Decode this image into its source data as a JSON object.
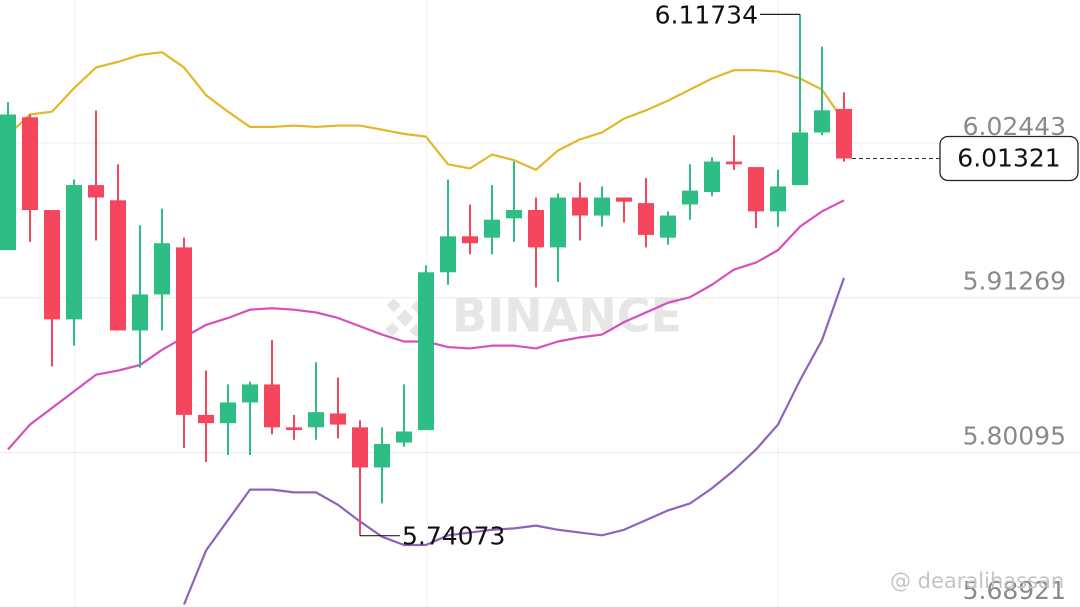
{
  "chart_data": {
    "type": "candlestick",
    "categories": [
      null,
      null,
      null,
      null,
      null,
      null,
      null,
      null,
      null,
      null,
      null,
      null,
      null,
      null,
      null,
      null,
      null,
      null,
      null,
      null,
      null,
      null,
      null,
      null,
      null,
      null,
      null,
      null,
      null,
      null,
      null,
      null,
      null,
      null,
      null,
      null,
      null,
      null,
      null
    ],
    "ohlc": [
      [
        5.947,
        6.054,
        5.947,
        6.045
      ],
      [
        6.043,
        6.045,
        5.953,
        5.976
      ],
      [
        5.976,
        5.976,
        5.863,
        5.897
      ],
      [
        5.897,
        5.998,
        5.878,
        5.994
      ],
      [
        5.994,
        6.048,
        5.954,
        5.985
      ],
      [
        5.983,
        6.009,
        5.889,
        5.889
      ],
      [
        5.889,
        5.965,
        5.862,
        5.915
      ],
      [
        5.915,
        5.977,
        5.889,
        5.952
      ],
      [
        5.949,
        5.956,
        5.804,
        5.828
      ],
      [
        5.828,
        5.86,
        5.794,
        5.822
      ],
      [
        5.822,
        5.85,
        5.799,
        5.837
      ],
      [
        5.837,
        5.852,
        5.799,
        5.85
      ],
      [
        5.85,
        5.882,
        5.814,
        5.819
      ],
      [
        5.819,
        5.828,
        5.81,
        5.817
      ],
      [
        5.819,
        5.866,
        5.81,
        5.83
      ],
      [
        5.829,
        5.855,
        5.811,
        5.821
      ],
      [
        5.819,
        5.824,
        5.74073,
        5.79
      ],
      [
        5.79,
        5.819,
        5.764,
        5.807
      ],
      [
        5.808,
        5.85,
        5.805,
        5.816
      ],
      [
        5.817,
        5.936,
        5.817,
        5.931
      ],
      [
        5.931,
        5.998,
        5.922,
        5.957
      ],
      [
        5.957,
        5.98,
        5.944,
        5.952
      ],
      [
        5.956,
        5.994,
        5.944,
        5.969
      ],
      [
        5.97,
        6.011,
        5.953,
        5.976
      ],
      [
        5.976,
        5.985,
        5.92,
        5.949
      ],
      [
        5.949,
        5.988,
        5.924,
        5.985
      ],
      [
        5.985,
        5.996,
        5.954,
        5.972
      ],
      [
        5.972,
        5.993,
        5.964,
        5.985
      ],
      [
        5.985,
        5.985,
        5.967,
        5.982
      ],
      [
        5.981,
        5.999,
        5.949,
        5.958
      ],
      [
        5.956,
        5.975,
        5.951,
        5.972
      ],
      [
        5.98,
        6.009,
        5.969,
        5.99
      ],
      [
        5.989,
        6.014,
        5.986,
        6.011
      ],
      [
        6.011,
        6.03,
        6.005,
        6.009
      ],
      [
        6.007,
        6.007,
        5.963,
        5.975
      ],
      [
        5.975,
        6.005,
        5.964,
        5.993
      ],
      [
        5.994,
        6.11734,
        5.994,
        6.032
      ],
      [
        6.032,
        6.094,
        6.03,
        6.048
      ],
      [
        6.049,
        6.061,
        6.011,
        6.01321
      ]
    ],
    "up_color": "#2ebd85",
    "down_color": "#f6465d",
    "overlays": [
      {
        "color": "#e2b72a",
        "values": [
          6.03,
          6.045,
          6.047,
          6.064,
          6.079,
          6.083,
          6.088,
          6.09,
          6.079,
          6.059,
          6.047,
          6.036,
          6.036,
          6.037,
          6.036,
          6.037,
          6.037,
          6.034,
          6.031,
          6.029,
          6.009,
          6.006,
          6.016,
          6.012,
          6.005,
          6.019,
          6.027,
          6.032,
          6.042,
          6.048,
          6.055,
          6.063,
          6.071,
          6.077,
          6.077,
          6.076,
          6.071,
          6.063,
          6.04
        ]
      },
      {
        "color": "#d64fbf",
        "values": [
          5.803,
          5.821,
          5.833,
          5.845,
          5.857,
          5.86,
          5.864,
          5.875,
          5.884,
          5.893,
          5.898,
          5.904,
          5.905,
          5.904,
          5.902,
          5.898,
          5.892,
          5.886,
          5.881,
          5.881,
          5.877,
          5.876,
          5.878,
          5.878,
          5.876,
          5.881,
          5.884,
          5.886,
          5.895,
          5.902,
          5.909,
          5.913,
          5.922,
          5.933,
          5.938,
          5.947,
          5.964,
          5.975,
          5.983
        ]
      },
      {
        "color": "#8e63b8",
        "values": [
          null,
          null,
          null,
          null,
          null,
          null,
          null,
          null,
          5.691,
          5.73,
          5.752,
          5.774,
          5.774,
          5.772,
          5.772,
          5.763,
          5.751,
          5.74,
          5.734,
          5.734,
          5.741,
          5.743,
          5.745,
          5.746,
          5.748,
          5.745,
          5.743,
          5.741,
          5.745,
          5.752,
          5.759,
          5.764,
          5.775,
          5.788,
          5.803,
          5.821,
          5.853,
          5.882,
          5.927
        ]
      }
    ],
    "ylim": [
      5.68921,
      6.1277
    ],
    "yticks": [
      6.02443,
      5.91269,
      5.80095,
      5.68921
    ],
    "grid": true,
    "watermark": "BINANCE",
    "credit": "@ dearalihassan"
  }
}
